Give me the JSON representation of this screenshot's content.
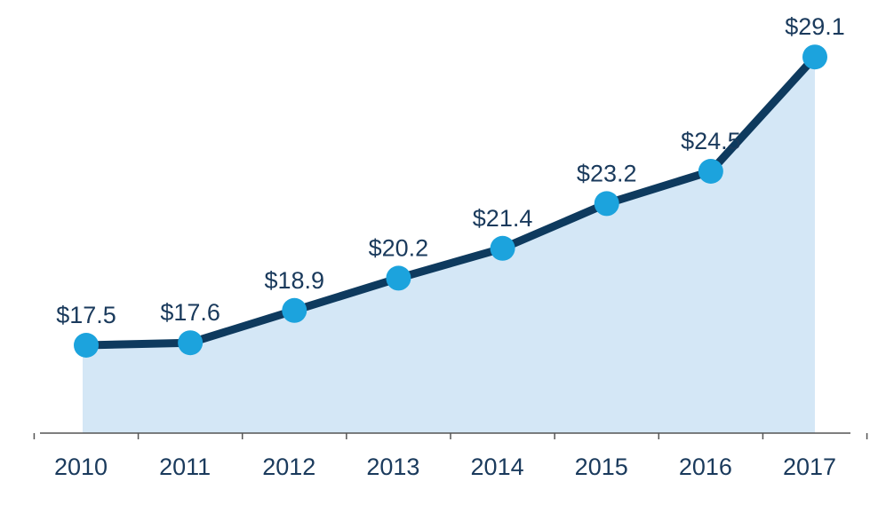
{
  "chart_data": {
    "type": "area",
    "title": "",
    "xlabel": "",
    "ylabel": "",
    "categories": [
      "2010",
      "2011",
      "2012",
      "2013",
      "2014",
      "2015",
      "2016",
      "2017"
    ],
    "values": [
      17.5,
      17.6,
      18.9,
      20.2,
      21.4,
      23.2,
      24.5,
      29.1
    ],
    "data_labels": [
      "$17.5",
      "$17.6",
      "$18.9",
      "$20.2",
      "$21.4",
      "$23.2",
      "$24.5",
      "$29.1"
    ],
    "grid": false,
    "legend": "none",
    "colors": {
      "area_fill": "#d4e7f6",
      "line": "#0e3a5e",
      "marker": "#1ca3dd",
      "axis": "#555555",
      "text": "#1a3a5c"
    }
  }
}
